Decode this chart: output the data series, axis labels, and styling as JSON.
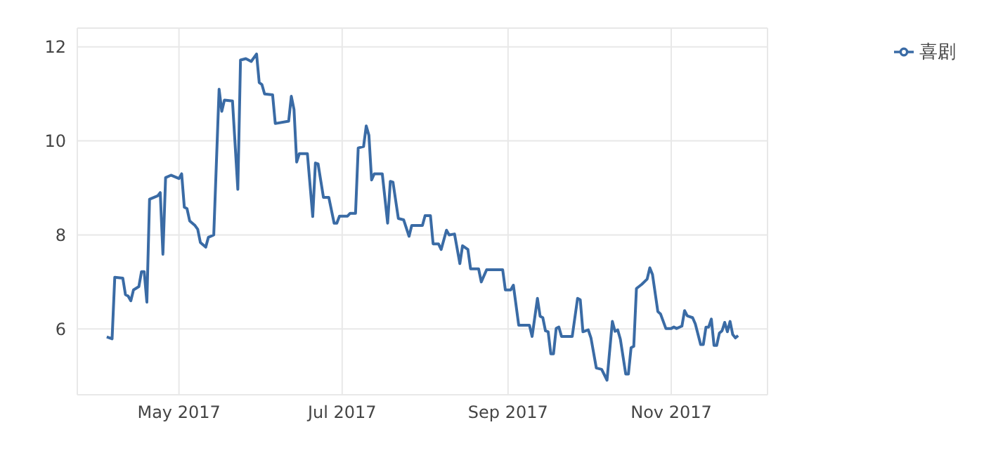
{
  "chart_data": {
    "type": "line",
    "legend": "top right",
    "grid": true,
    "marker": "none",
    "line_style": "solid",
    "xlim": [
      "2017-03-24",
      "2017-12-07"
    ],
    "xticks": [
      {
        "value": "2017-05-01",
        "label": "May 2017"
      },
      {
        "value": "2017-07-01",
        "label": "Jul 2017"
      },
      {
        "value": "2017-09-01",
        "label": "Sep 2017"
      },
      {
        "value": "2017-11-01",
        "label": "Nov 2017"
      }
    ],
    "ylim": [
      4.6,
      12.4
    ],
    "yticks": [
      6,
      8,
      10,
      12
    ],
    "x": [
      "2017-04-04",
      "2017-04-06",
      "2017-04-07",
      "2017-04-10",
      "2017-04-11",
      "2017-04-12",
      "2017-04-13",
      "2017-04-14",
      "2017-04-16",
      "2017-04-17",
      "2017-04-18",
      "2017-04-19",
      "2017-04-20",
      "2017-04-23",
      "2017-04-24",
      "2017-04-25",
      "2017-04-26",
      "2017-04-28",
      "2017-05-01",
      "2017-05-02",
      "2017-05-03",
      "2017-05-04",
      "2017-05-05",
      "2017-05-07",
      "2017-05-08",
      "2017-05-09",
      "2017-05-11",
      "2017-05-12",
      "2017-05-14",
      "2017-05-16",
      "2017-05-17",
      "2017-05-18",
      "2017-05-21",
      "2017-05-23",
      "2017-05-24",
      "2017-05-26",
      "2017-05-28",
      "2017-05-30",
      "2017-05-31",
      "2017-06-01",
      "2017-06-02",
      "2017-06-05",
      "2017-06-06",
      "2017-06-11",
      "2017-06-12",
      "2017-06-13",
      "2017-06-14",
      "2017-06-15",
      "2017-06-18",
      "2017-06-20",
      "2017-06-21",
      "2017-06-22",
      "2017-06-24",
      "2017-06-26",
      "2017-06-28",
      "2017-06-29",
      "2017-06-30",
      "2017-07-03",
      "2017-07-04",
      "2017-07-06",
      "2017-07-07",
      "2017-07-09",
      "2017-07-10",
      "2017-07-11",
      "2017-07-12",
      "2017-07-13",
      "2017-07-16",
      "2017-07-18",
      "2017-07-19",
      "2017-07-20",
      "2017-07-22",
      "2017-07-24",
      "2017-07-26",
      "2017-07-27",
      "2017-07-31",
      "2017-08-01",
      "2017-08-03",
      "2017-08-04",
      "2017-08-06",
      "2017-08-07",
      "2017-08-09",
      "2017-08-10",
      "2017-08-12",
      "2017-08-14",
      "2017-08-15",
      "2017-08-17",
      "2017-08-18",
      "2017-08-21",
      "2017-08-22",
      "2017-08-24",
      "2017-08-30",
      "2017-08-31",
      "2017-09-02",
      "2017-09-03",
      "2017-09-05",
      "2017-09-09",
      "2017-09-10",
      "2017-09-12",
      "2017-09-13",
      "2017-09-14",
      "2017-09-15",
      "2017-09-16",
      "2017-09-17",
      "2017-09-18",
      "2017-09-19",
      "2017-09-20",
      "2017-09-21",
      "2017-09-25",
      "2017-09-27",
      "2017-09-28",
      "2017-09-29",
      "2017-10-01",
      "2017-10-02",
      "2017-10-04",
      "2017-10-06",
      "2017-10-08",
      "2017-10-10",
      "2017-10-11",
      "2017-10-12",
      "2017-10-13",
      "2017-10-15",
      "2017-10-16",
      "2017-10-17",
      "2017-10-18",
      "2017-10-19",
      "2017-10-21",
      "2017-10-23",
      "2017-10-24",
      "2017-10-25",
      "2017-10-27",
      "2017-10-28",
      "2017-10-30",
      "2017-11-01",
      "2017-11-02",
      "2017-11-03",
      "2017-11-05",
      "2017-11-06",
      "2017-11-07",
      "2017-11-09",
      "2017-11-10",
      "2017-11-12",
      "2017-11-13",
      "2017-11-14",
      "2017-11-15",
      "2017-11-16",
      "2017-11-17",
      "2017-11-18",
      "2017-11-19",
      "2017-11-20",
      "2017-11-21",
      "2017-11-22",
      "2017-11-23",
      "2017-11-24",
      "2017-11-25",
      "2017-11-26"
    ],
    "series": [
      {
        "name": "喜剧",
        "color": "#3a6ba5",
        "values": [
          5.83,
          5.79,
          7.1,
          7.08,
          6.73,
          6.7,
          6.6,
          6.83,
          6.9,
          7.22,
          7.22,
          6.57,
          8.76,
          8.83,
          8.9,
          7.59,
          9.22,
          9.27,
          9.2,
          9.3,
          8.59,
          8.56,
          8.3,
          8.2,
          8.12,
          7.84,
          7.74,
          7.95,
          8.0,
          11.1,
          10.63,
          10.87,
          10.85,
          8.97,
          11.72,
          11.75,
          11.69,
          11.85,
          11.24,
          11.2,
          11.0,
          10.98,
          10.37,
          10.42,
          10.95,
          10.67,
          9.55,
          9.73,
          9.73,
          8.39,
          9.53,
          9.51,
          8.8,
          8.8,
          8.25,
          8.25,
          8.4,
          8.4,
          8.46,
          8.46,
          9.85,
          9.88,
          10.32,
          10.12,
          9.17,
          9.3,
          9.3,
          8.25,
          9.14,
          9.12,
          8.35,
          8.32,
          7.97,
          8.2,
          8.2,
          8.41,
          8.41,
          7.81,
          7.81,
          7.69,
          8.1,
          8.0,
          8.02,
          7.39,
          7.77,
          7.69,
          7.28,
          7.28,
          7.0,
          7.26,
          7.26,
          6.83,
          6.83,
          6.93,
          6.08,
          6.08,
          5.84,
          6.65,
          6.27,
          6.24,
          5.96,
          5.94,
          5.47,
          5.47,
          6.01,
          6.04,
          5.84,
          5.84,
          6.65,
          6.62,
          5.94,
          5.98,
          5.81,
          5.17,
          5.14,
          4.91,
          6.16,
          5.95,
          5.98,
          5.78,
          5.04,
          5.04,
          5.6,
          5.63,
          6.86,
          6.95,
          7.06,
          7.3,
          7.16,
          6.37,
          6.32,
          6.01,
          6.01,
          6.04,
          6.01,
          6.06,
          6.39,
          6.28,
          6.24,
          6.11,
          5.67,
          5.67,
          6.04,
          6.04,
          6.21,
          5.65,
          5.65,
          5.91,
          5.96,
          6.14,
          5.94,
          6.16,
          5.88,
          5.81,
          5.86
        ]
      }
    ]
  }
}
